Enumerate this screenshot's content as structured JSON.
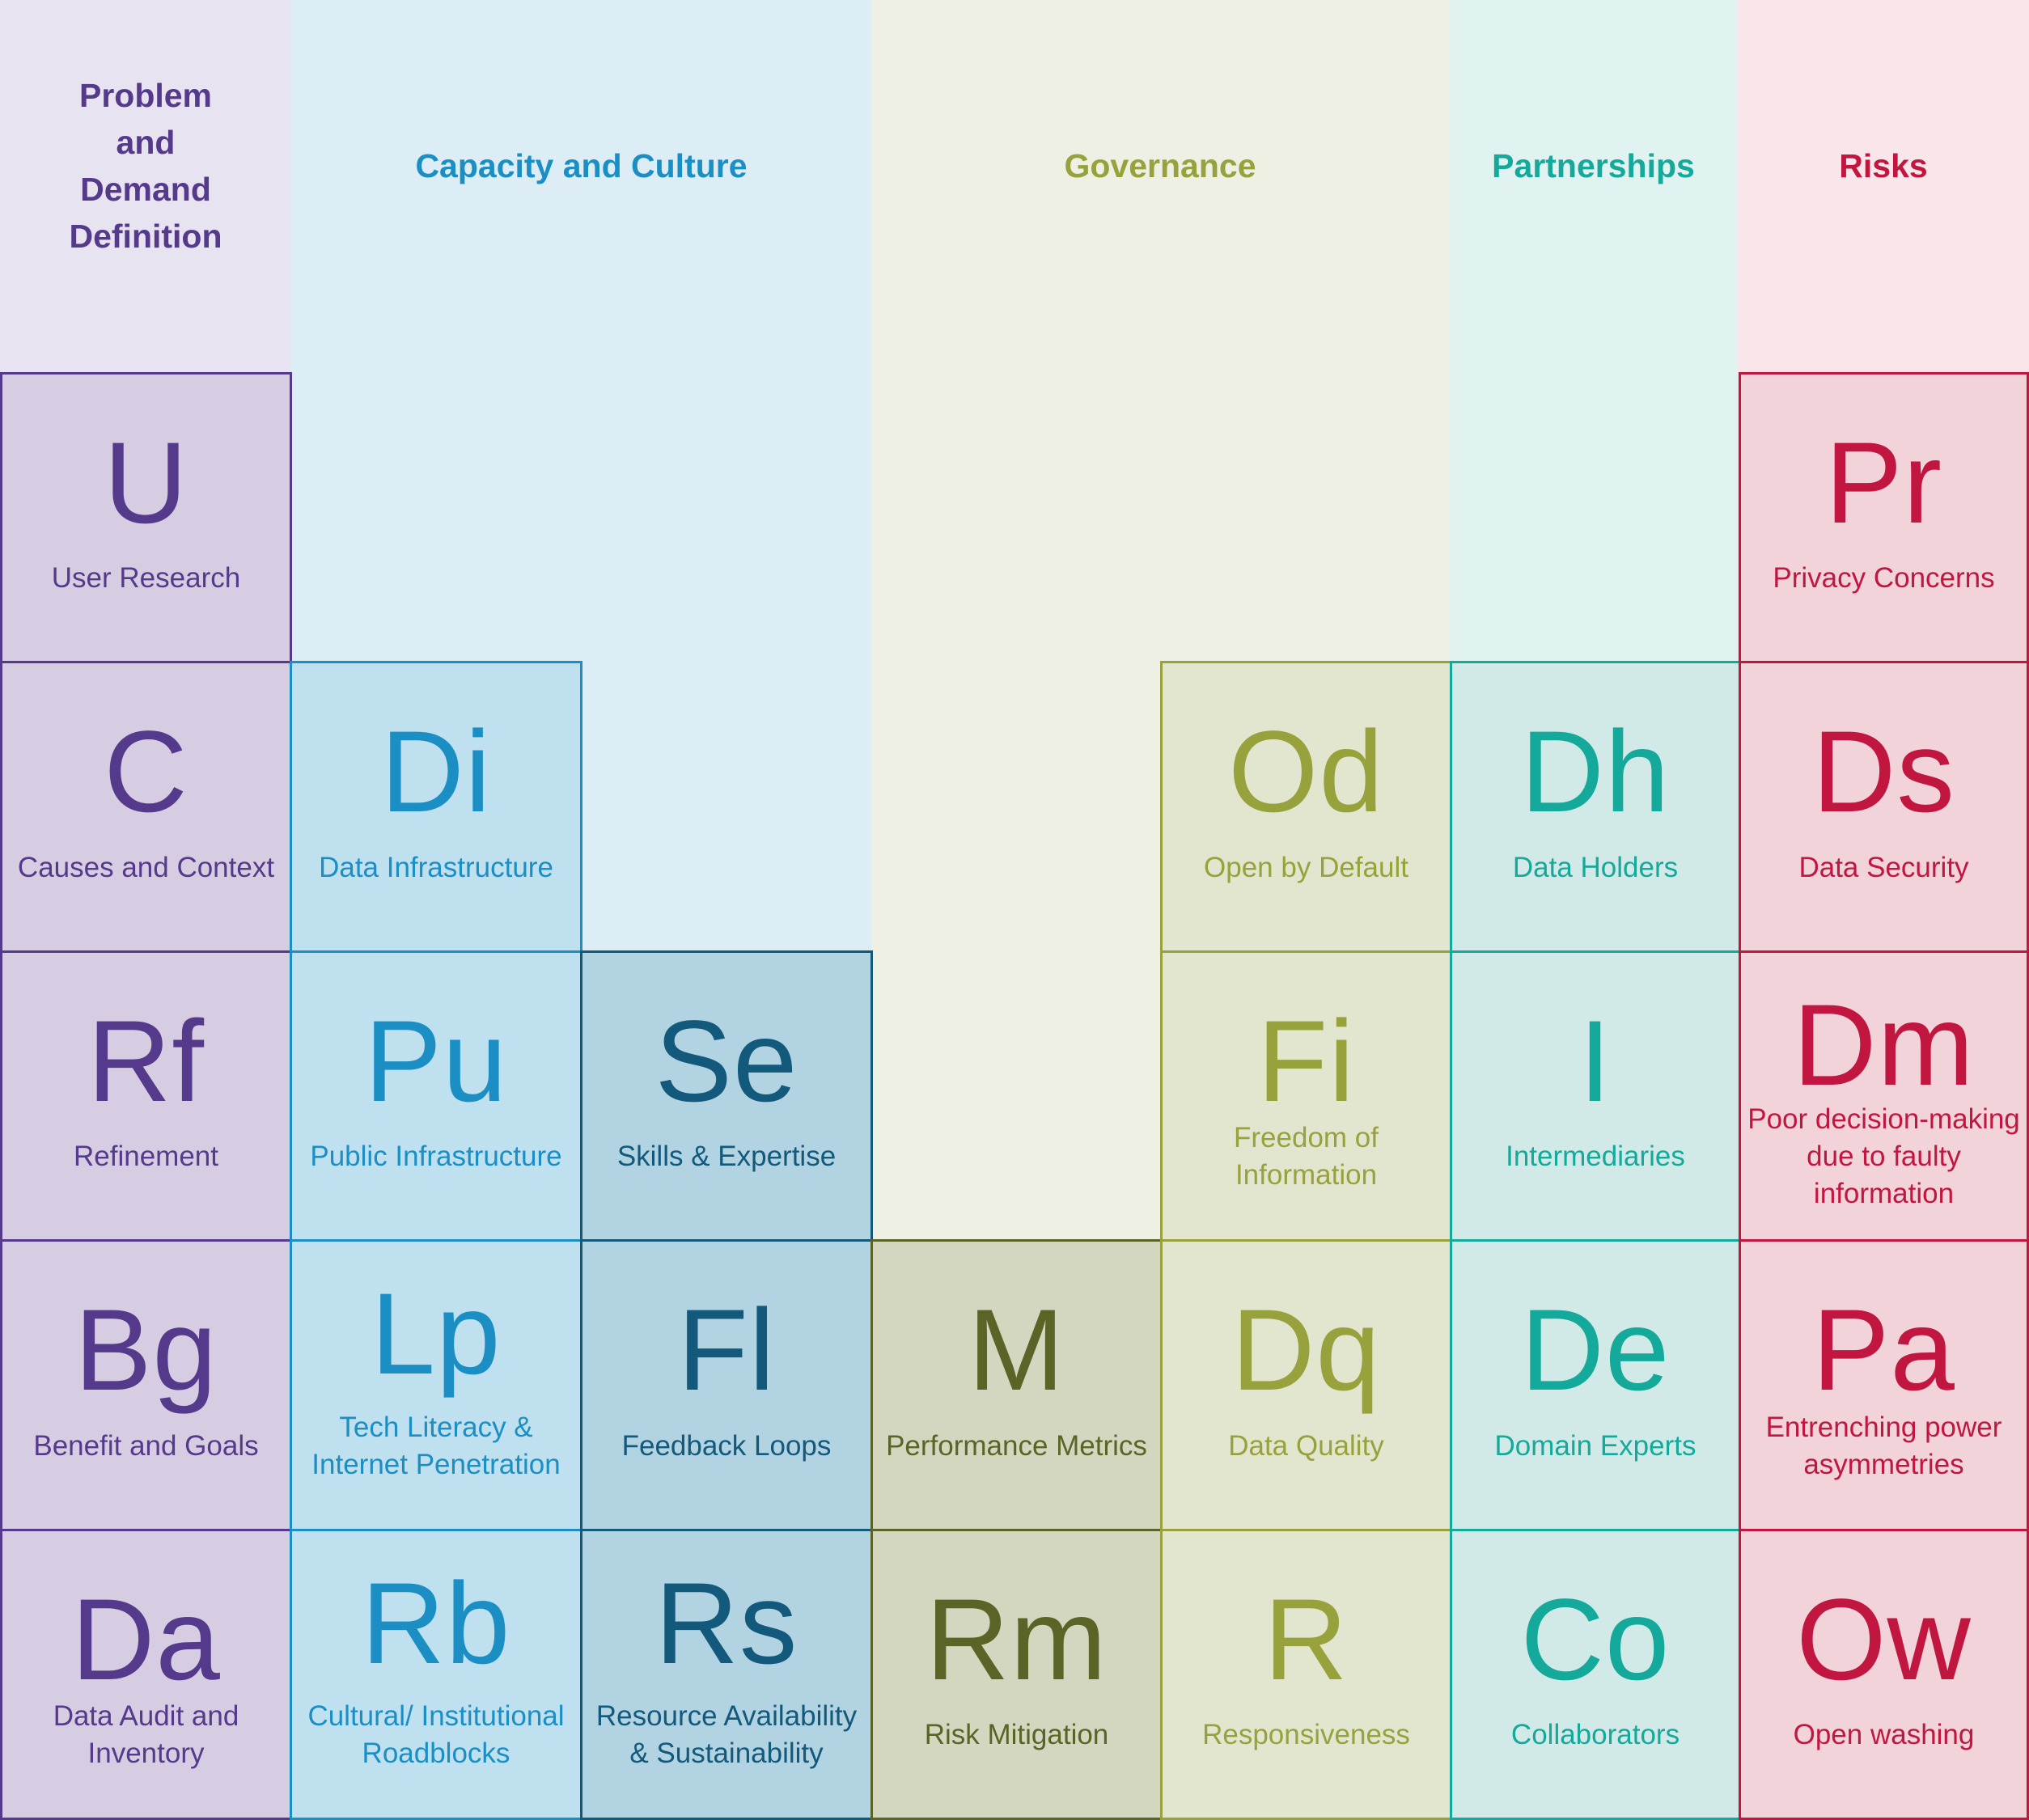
{
  "columns": [
    {
      "key": "problem",
      "header": "Problem and Demand Definition",
      "bg": "#e8e3f0",
      "tile_bg": "#d6cde2",
      "color": "#553a8b"
    },
    {
      "key": "capacity",
      "header": "Capacity and Culture",
      "bg": "#dcedf5"
    },
    {
      "key": "governance",
      "header": "Governance",
      "bg": "#edf0e2"
    },
    {
      "key": "partnerships",
      "header": "Partnerships",
      "bg": "#e1f3f1",
      "tile_bg": "#d1eae7",
      "color": "#14a99a"
    },
    {
      "key": "risks",
      "header": "Risks",
      "bg": "#f8e6ea",
      "tile_bg": "#f3d3da",
      "color": "#c0163f"
    }
  ],
  "palette": {
    "problem": {
      "fill": "#d6cde2",
      "ink": "#553a8b"
    },
    "capacity_light": {
      "fill": "#bfe0ef",
      "ink": "#1b8fc4"
    },
    "capacity_dark": {
      "fill": "#b2d3e2",
      "ink": "#13597b"
    },
    "governance_dark": {
      "fill": "#d4d7c0",
      "ink": "#5b6326"
    },
    "governance_light": {
      "fill": "#e3e6cf",
      "ink": "#98a23d"
    },
    "partnerships": {
      "fill": "#d1eae7",
      "ink": "#14a99a"
    },
    "risks": {
      "fill": "#f3d3da",
      "ink": "#c0163f"
    }
  },
  "tiles": [
    {
      "symbol": "U",
      "label": "User Research",
      "tone": "problem"
    },
    {
      "symbol": "C",
      "label": "Causes and Context",
      "tone": "problem"
    },
    {
      "symbol": "Rf",
      "label": "Refinement",
      "tone": "problem"
    },
    {
      "symbol": "Bg",
      "label": "Benefit and Goals",
      "tone": "problem"
    },
    {
      "symbol": "Da",
      "label": "Data Audit and Inventory",
      "tone": "problem"
    },
    {
      "symbol": "Di",
      "label": "Data Infrastructure",
      "tone": "capacity_light"
    },
    {
      "symbol": "Pu",
      "label": "Public Infrastructure",
      "tone": "capacity_light"
    },
    {
      "symbol": "Lp",
      "label": "Tech Literacy & Internet Penetration",
      "tone": "capacity_light"
    },
    {
      "symbol": "Rb",
      "label": "Cultural/ Institutional Roadblocks",
      "tone": "capacity_light"
    },
    {
      "symbol": "Se",
      "label": "Skills & Expertise",
      "tone": "capacity_dark"
    },
    {
      "symbol": "Fl",
      "label": "Feedback Loops",
      "tone": "capacity_dark"
    },
    {
      "symbol": "Rs",
      "label": "Resource Availability & Sustainability",
      "tone": "capacity_dark"
    },
    {
      "symbol": "M",
      "label": "Performance Metrics",
      "tone": "governance_dark"
    },
    {
      "symbol": "Rm",
      "label": "Risk Mitigation",
      "tone": "governance_dark"
    },
    {
      "symbol": "Od",
      "label": "Open by Default",
      "tone": "governance_light"
    },
    {
      "symbol": "Fi",
      "label": "Freedom of Information",
      "tone": "governance_light"
    },
    {
      "symbol": "Dq",
      "label": "Data Quality",
      "tone": "governance_light"
    },
    {
      "symbol": "R",
      "label": "Responsiveness",
      "tone": "governance_light"
    },
    {
      "symbol": "Dh",
      "label": "Data Holders",
      "tone": "partnerships"
    },
    {
      "symbol": "I",
      "label": "Intermediaries",
      "tone": "partnerships"
    },
    {
      "symbol": "De",
      "label": "Domain Experts",
      "tone": "partnerships"
    },
    {
      "symbol": "Co",
      "label": "Collaborators",
      "tone": "partnerships"
    },
    {
      "symbol": "Pr",
      "label": "Privacy Concerns",
      "tone": "risks"
    },
    {
      "symbol": "Ds",
      "label": "Data Security",
      "tone": "risks"
    },
    {
      "symbol": "Dm",
      "label": "Poor decision-making due to faulty information",
      "tone": "risks"
    },
    {
      "symbol": "Pa",
      "label": "Entrenching power asymmetries",
      "tone": "risks"
    },
    {
      "symbol": "Ow",
      "label": "Open washing",
      "tone": "risks"
    }
  ],
  "header_colors": {
    "problem": "#553a8b",
    "capacity": "#1b8fc4",
    "governance": "#98a23d",
    "partnerships": "#14a99a",
    "risks": "#c0163f"
  }
}
